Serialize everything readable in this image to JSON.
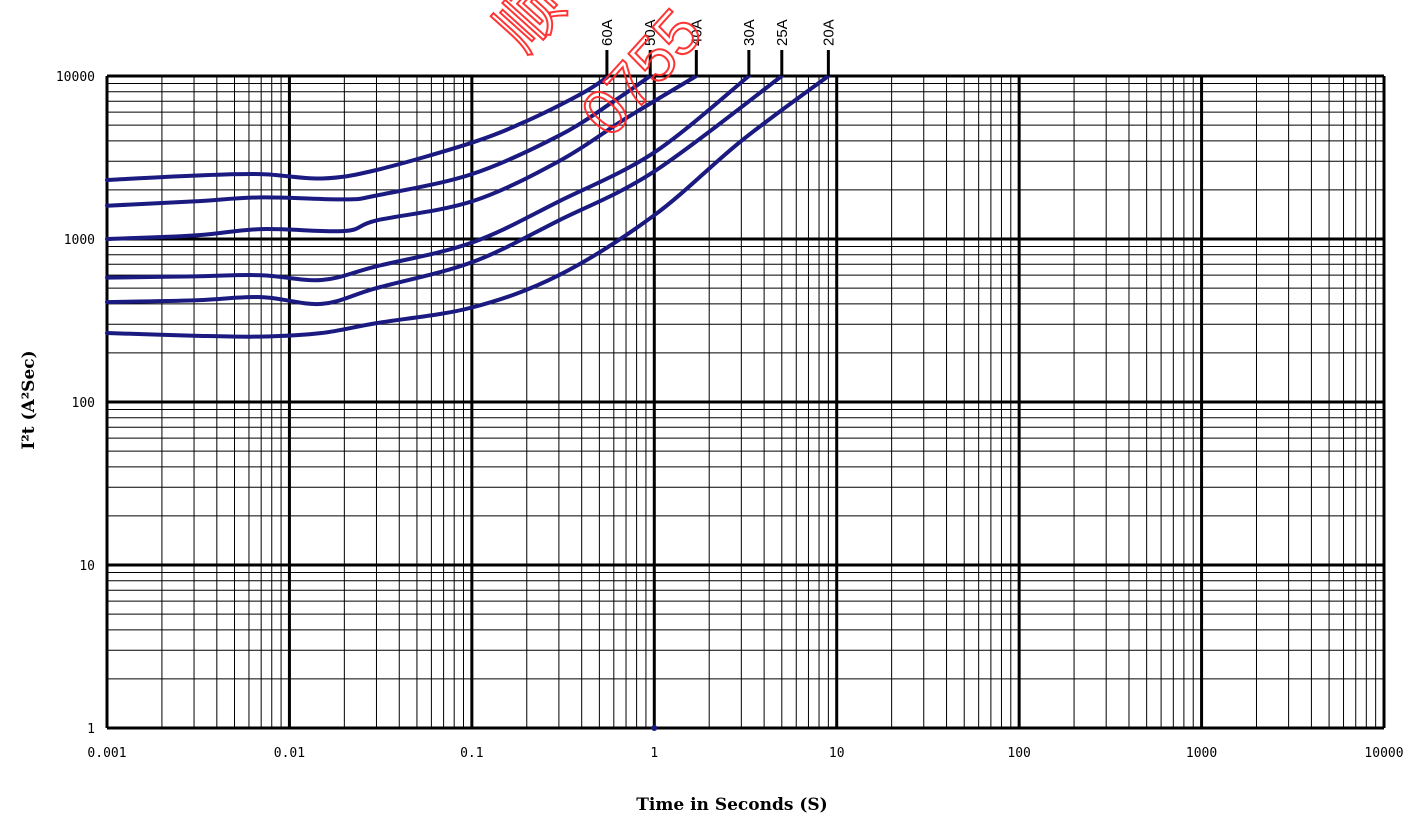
{
  "chart_data": {
    "type": "line",
    "xlabel": "Time in Seconds (S)",
    "ylabel": "I²t (A²Sec)",
    "xscale": "log",
    "yscale": "log",
    "xlim": [
      0.001,
      10000
    ],
    "ylim": [
      1,
      10000
    ],
    "grid": true,
    "x_ticks": [
      "0.001",
      "0.01",
      "0.1",
      "1",
      "10",
      "100",
      "1000",
      "10000"
    ],
    "y_ticks": [
      "1",
      "10",
      "100",
      "1000",
      "10000"
    ],
    "line_color": "#1a1a80",
    "series": [
      {
        "name": "60A",
        "points": [
          [
            0.001,
            2300
          ],
          [
            0.003,
            2450
          ],
          [
            0.007,
            2500
          ],
          [
            0.015,
            2350
          ],
          [
            0.03,
            2650
          ],
          [
            0.1,
            3900
          ],
          [
            0.2,
            5300
          ],
          [
            0.4,
            7800
          ],
          [
            0.55,
            9800
          ]
        ]
      },
      {
        "name": "50A",
        "points": [
          [
            0.001,
            1600
          ],
          [
            0.003,
            1700
          ],
          [
            0.007,
            1800
          ],
          [
            0.02,
            1750
          ],
          [
            0.03,
            1850
          ],
          [
            0.1,
            2500
          ],
          [
            0.3,
            4300
          ],
          [
            0.6,
            7000
          ],
          [
            0.95,
            10000
          ]
        ]
      },
      {
        "name": "40A",
        "points": [
          [
            0.001,
            1000
          ],
          [
            0.003,
            1050
          ],
          [
            0.007,
            1150
          ],
          [
            0.02,
            1120
          ],
          [
            0.03,
            1300
          ],
          [
            0.1,
            1700
          ],
          [
            0.3,
            3000
          ],
          [
            0.7,
            5500
          ],
          [
            1.7,
            10000
          ]
        ]
      },
      {
        "name": "30A",
        "points": [
          [
            0.001,
            580
          ],
          [
            0.003,
            590
          ],
          [
            0.007,
            600
          ],
          [
            0.015,
            560
          ],
          [
            0.03,
            680
          ],
          [
            0.1,
            950
          ],
          [
            0.3,
            1700
          ],
          [
            1.0,
            3400
          ],
          [
            3.3,
            10000
          ]
        ]
      },
      {
        "name": "25A",
        "points": [
          [
            0.001,
            410
          ],
          [
            0.003,
            420
          ],
          [
            0.007,
            440
          ],
          [
            0.015,
            400
          ],
          [
            0.03,
            500
          ],
          [
            0.1,
            720
          ],
          [
            0.3,
            1300
          ],
          [
            1.0,
            2600
          ],
          [
            5.0,
            10000
          ]
        ]
      },
      {
        "name": "20A",
        "points": [
          [
            0.001,
            265
          ],
          [
            0.003,
            255
          ],
          [
            0.007,
            252
          ],
          [
            0.015,
            265
          ],
          [
            0.03,
            305
          ],
          [
            0.1,
            380
          ],
          [
            0.3,
            600
          ],
          [
            1.0,
            1400
          ],
          [
            3.0,
            4000
          ],
          [
            9.0,
            10000
          ]
        ]
      }
    ]
  },
  "watermark": {
    "glyph": "顺",
    "digits": "0755"
  }
}
